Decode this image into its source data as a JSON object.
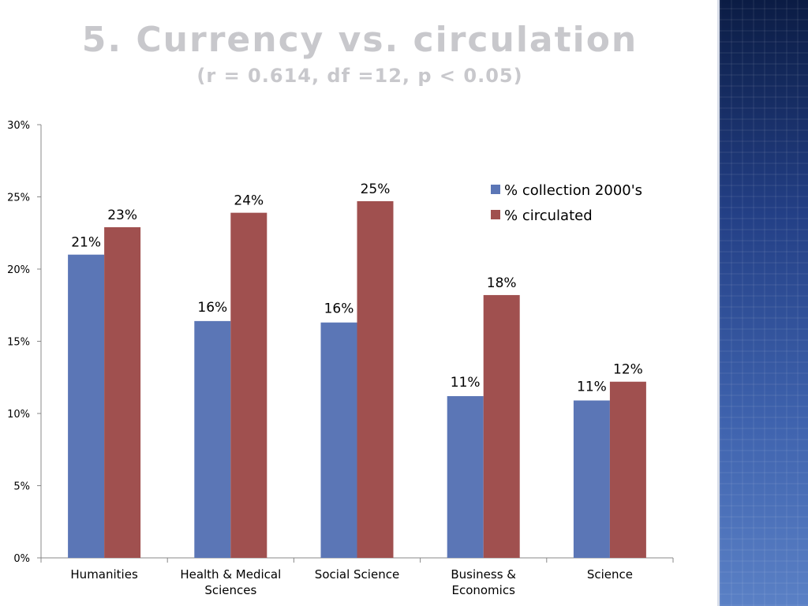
{
  "slide": {
    "title": "5. Currency vs. circulation",
    "subtitle": "(r = 0.614, df =12, p < 0.05)"
  },
  "chart_data": {
    "type": "bar",
    "categories": [
      "Humanities",
      "Health & Medical Sciences",
      "Social Science",
      "Business & Economics",
      "Science"
    ],
    "category_lines": [
      [
        "Humanities"
      ],
      [
        "Health & Medical",
        "Sciences"
      ],
      [
        "Social Science"
      ],
      [
        "Business &",
        "Economics"
      ],
      [
        "Science"
      ]
    ],
    "series": [
      {
        "name": "% collection 2000's",
        "values": [
          21,
          16.4,
          16.3,
          11.2,
          10.9
        ],
        "labels": [
          "21%",
          "16%",
          "16%",
          "11%",
          "11%"
        ],
        "color": "#5b76b6"
      },
      {
        "name": "% circulated",
        "values": [
          22.9,
          23.9,
          24.7,
          18.2,
          12.2
        ],
        "labels": [
          "23%",
          "24%",
          "25%",
          "18%",
          "12%"
        ],
        "color": "#a0504f"
      }
    ],
    "ylim": [
      0,
      30
    ],
    "yticks": [
      0,
      5,
      10,
      15,
      20,
      25,
      30
    ],
    "ytick_labels": [
      "0%",
      "5%",
      "10%",
      "15%",
      "20%",
      "25%",
      "30%"
    ],
    "xlabel": "",
    "ylabel": "",
    "grid": false,
    "legend_position": "top-right"
  }
}
